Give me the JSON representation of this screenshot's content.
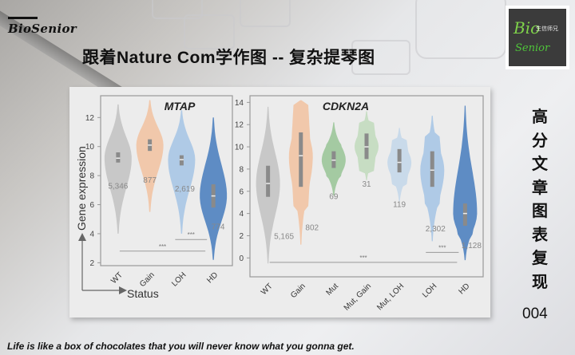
{
  "header": {
    "brand": "BioSenior",
    "title": "跟着Nature Com学作图  --  复杂提琴图",
    "logo": {
      "main": "Bio",
      "cn": "生信师兄",
      "sub": "Senior"
    }
  },
  "sidebar": {
    "chars": [
      "高",
      "分",
      "文",
      "章",
      "图",
      "表",
      "复",
      "现"
    ],
    "number": "004"
  },
  "footer": {
    "quote": "Life is like a box of chocolates that you will never know what you gonna get."
  },
  "axes": {
    "ylabel": "Gene expression",
    "xlabel": "Status"
  },
  "colors": {
    "gray": "#c4c4c4",
    "orange": "#f2c4a4",
    "green": "#9cc79a",
    "lightgreen": "#c3dbbf",
    "lightblue": "#c5d8ea",
    "blue": "#a9c7e6",
    "darkblue": "#4f82c0"
  },
  "chart_data": [
    {
      "type": "violin",
      "title": "MTAP",
      "xlabel": "Status",
      "ylabel": "Gene expression",
      "ylim": [
        2,
        13.5
      ],
      "yticks": [
        2,
        4,
        6,
        8,
        10,
        12
      ],
      "categories": [
        "WT",
        "Gain",
        "LOH",
        "HD"
      ],
      "n": [
        "5,346",
        "877",
        "2,619",
        "774"
      ],
      "medians": [
        9.2,
        10.1,
        9.1,
        6.6
      ],
      "q1": [
        8.9,
        9.7,
        8.7,
        5.8
      ],
      "q3": [
        9.6,
        10.5,
        9.4,
        7.4
      ],
      "min": [
        4.0,
        5.5,
        4.0,
        2.2
      ],
      "max": [
        12.9,
        13.2,
        12.5,
        12.0
      ],
      "colors": [
        "#c4c4c4",
        "#f2c4a4",
        "#a9c7e6",
        "#4f82c0"
      ],
      "significance": [
        {
          "from": "WT",
          "to": "HD",
          "label": "***",
          "y": 2.8
        },
        {
          "from": "LOH",
          "to": "HD",
          "label": "***",
          "y": 3.6
        }
      ]
    },
    {
      "type": "violin",
      "title": "CDKN2A",
      "xlabel": "Status",
      "ylabel": "Gene expression",
      "ylim": [
        -1.5,
        14.5
      ],
      "yticks": [
        0,
        2,
        4,
        6,
        8,
        10,
        12,
        14
      ],
      "categories": [
        "WT",
        "Gain",
        "Mut",
        "Mut, Gain",
        "Mut, LOH",
        "LOH",
        "HD"
      ],
      "n": [
        "5,165",
        "802",
        "69",
        "31",
        "119",
        "2,302",
        "1,128"
      ],
      "medians": [
        6.7,
        9.2,
        8.8,
        10.0,
        8.6,
        7.9,
        4.0
      ],
      "q1": [
        5.5,
        6.4,
        8.1,
        8.9,
        7.7,
        6.4,
        2.9
      ],
      "q3": [
        8.3,
        11.3,
        9.6,
        11.2,
        9.8,
        9.6,
        4.9
      ],
      "min": [
        -0.5,
        1.2,
        5.6,
        7.0,
        5.1,
        1.5,
        -0.2
      ],
      "max": [
        13.6,
        14.2,
        12.2,
        13.2,
        11.7,
        12.8,
        13.7
      ],
      "colors": [
        "#c4c4c4",
        "#f2c4a4",
        "#9cc79a",
        "#c3dbbf",
        "#c5d8ea",
        "#a9c7e6",
        "#4f82c0"
      ],
      "significance": [
        {
          "from": "WT",
          "to": "HD",
          "label": "***",
          "y": -0.4
        },
        {
          "from": "LOH",
          "to": "HD",
          "label": "***",
          "y": 0.5
        }
      ]
    }
  ]
}
